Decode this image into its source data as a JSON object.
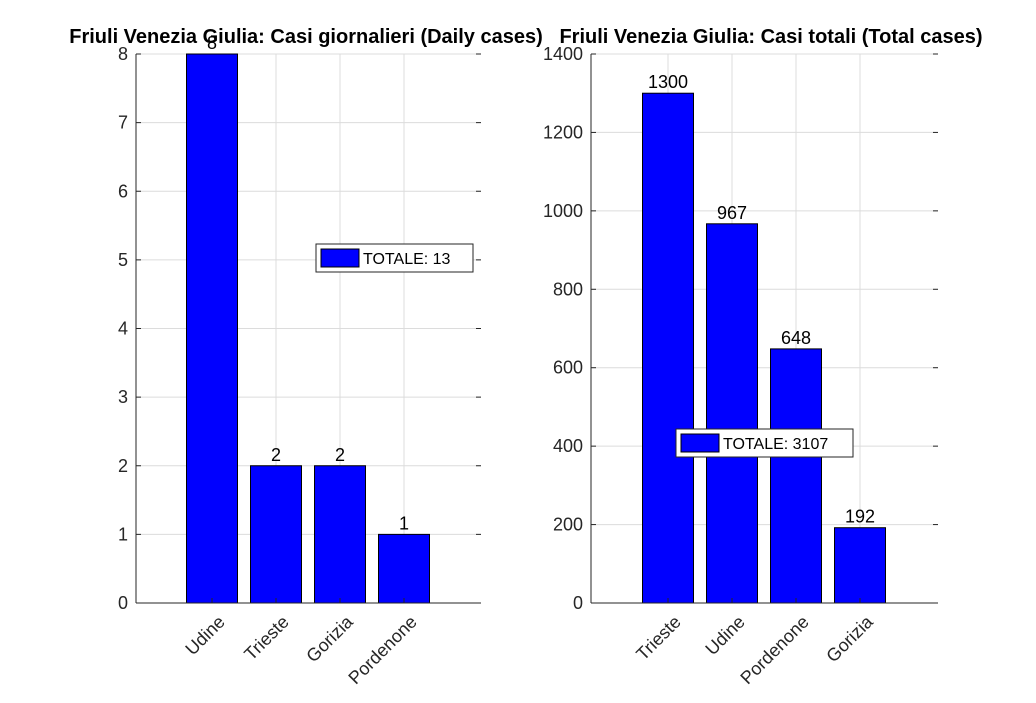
{
  "colors": {
    "bar": "#0000ff",
    "bar_edge": "#000000",
    "grid": "#dcdcdc",
    "axis": "#262626",
    "background": "#ffffff"
  },
  "chart_data": [
    {
      "type": "bar",
      "title": "Friuli Venezia Giulia: Casi giornalieri (Daily cases)",
      "categories": [
        "Udine",
        "Trieste",
        "Gorizia",
        "Pordenone"
      ],
      "values": [
        8,
        2,
        2,
        1
      ],
      "data_labels": [
        "8",
        "2",
        "2",
        "1"
      ],
      "ylim": [
        0,
        8
      ],
      "yticks": [
        0,
        1,
        2,
        3,
        4,
        5,
        6,
        7,
        8
      ],
      "grid": true,
      "legend": {
        "label": "TOTALE: 13",
        "placement": "right-middle"
      }
    },
    {
      "type": "bar",
      "title": "Friuli Venezia Giulia: Casi totali (Total cases)",
      "categories": [
        "Trieste",
        "Udine",
        "Pordenone",
        "Gorizia"
      ],
      "values": [
        1300,
        967,
        648,
        192
      ],
      "data_labels": [
        "1300",
        "967",
        "648",
        "192"
      ],
      "ylim": [
        0,
        1400
      ],
      "yticks": [
        0,
        200,
        400,
        600,
        800,
        1000,
        1200,
        1400
      ],
      "grid": true,
      "legend": {
        "label": "TOTALE: 3107",
        "placement": "center-left"
      }
    }
  ]
}
